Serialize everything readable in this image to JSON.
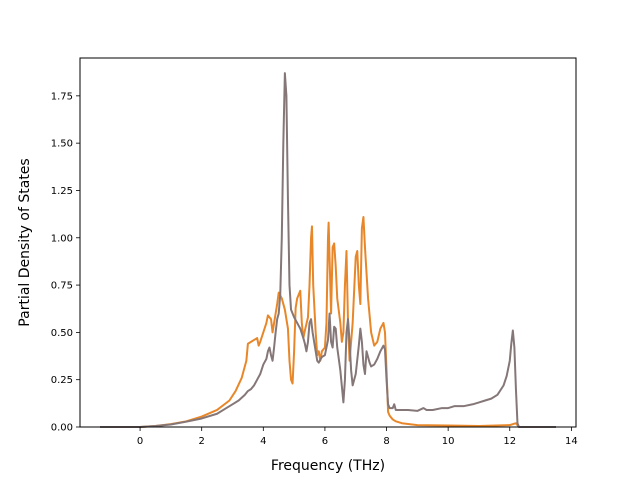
{
  "chart_data": {
    "type": "line",
    "title": "",
    "xlabel": "Frequency (THz)",
    "ylabel": "Partial Density of States",
    "xlim": [
      -1.95,
      14.15
    ],
    "ylim": [
      0,
      1.95
    ],
    "xticks": [
      0,
      2,
      4,
      6,
      8,
      10,
      12,
      14
    ],
    "xtick_labels": [
      "0",
      "2",
      "4",
      "6",
      "8",
      "10",
      "12",
      "14"
    ],
    "yticks": [
      0,
      0.25,
      0.5,
      0.75,
      1.0,
      1.25,
      1.5,
      1.75
    ],
    "ytick_labels": [
      "0.00",
      "0.25",
      "0.50",
      "0.75",
      "1.00",
      "1.25",
      "1.50",
      "1.75"
    ],
    "grid": false,
    "legend": "none",
    "series": [
      {
        "color": "#e8872a",
        "points": [
          [
            -1.3,
            0
          ],
          [
            0,
            0
          ],
          [
            0.5,
            0.005
          ],
          [
            1.0,
            0.015
          ],
          [
            1.5,
            0.03
          ],
          [
            2.0,
            0.055
          ],
          [
            2.5,
            0.09
          ],
          [
            2.9,
            0.14
          ],
          [
            3.1,
            0.19
          ],
          [
            3.3,
            0.26
          ],
          [
            3.45,
            0.35
          ],
          [
            3.5,
            0.44
          ],
          [
            3.6,
            0.45
          ],
          [
            3.7,
            0.46
          ],
          [
            3.8,
            0.47
          ],
          [
            3.85,
            0.43
          ],
          [
            3.9,
            0.45
          ],
          [
            4.0,
            0.5
          ],
          [
            4.1,
            0.55
          ],
          [
            4.15,
            0.59
          ],
          [
            4.25,
            0.57
          ],
          [
            4.3,
            0.5
          ],
          [
            4.35,
            0.55
          ],
          [
            4.45,
            0.65
          ],
          [
            4.5,
            0.71
          ],
          [
            4.6,
            0.68
          ],
          [
            4.7,
            0.62
          ],
          [
            4.8,
            0.52
          ],
          [
            4.85,
            0.35
          ],
          [
            4.9,
            0.25
          ],
          [
            4.95,
            0.23
          ],
          [
            5.0,
            0.4
          ],
          [
            5.05,
            0.63
          ],
          [
            5.1,
            0.68
          ],
          [
            5.2,
            0.72
          ],
          [
            5.25,
            0.55
          ],
          [
            5.3,
            0.47
          ],
          [
            5.35,
            0.51
          ],
          [
            5.45,
            0.58
          ],
          [
            5.5,
            0.75
          ],
          [
            5.55,
            1.0
          ],
          [
            5.58,
            1.06
          ],
          [
            5.62,
            0.75
          ],
          [
            5.7,
            0.5
          ],
          [
            5.75,
            0.38
          ],
          [
            5.8,
            0.4
          ],
          [
            5.85,
            0.35
          ],
          [
            5.9,
            0.4
          ],
          [
            6.0,
            0.42
          ],
          [
            6.05,
            0.55
          ],
          [
            6.1,
            1.0
          ],
          [
            6.12,
            1.08
          ],
          [
            6.15,
            0.9
          ],
          [
            6.2,
            0.6
          ],
          [
            6.25,
            0.95
          ],
          [
            6.3,
            0.97
          ],
          [
            6.35,
            0.85
          ],
          [
            6.4,
            0.68
          ],
          [
            6.5,
            0.55
          ],
          [
            6.55,
            0.45
          ],
          [
            6.6,
            0.5
          ],
          [
            6.65,
            0.75
          ],
          [
            6.7,
            0.93
          ],
          [
            6.75,
            0.55
          ],
          [
            6.8,
            0.35
          ],
          [
            6.85,
            0.45
          ],
          [
            6.9,
            0.55
          ],
          [
            7.0,
            0.9
          ],
          [
            7.05,
            0.93
          ],
          [
            7.1,
            0.75
          ],
          [
            7.15,
            0.65
          ],
          [
            7.2,
            1.05
          ],
          [
            7.25,
            1.11
          ],
          [
            7.3,
            0.95
          ],
          [
            7.4,
            0.68
          ],
          [
            7.5,
            0.5
          ],
          [
            7.6,
            0.43
          ],
          [
            7.7,
            0.45
          ],
          [
            7.8,
            0.52
          ],
          [
            7.9,
            0.55
          ],
          [
            7.95,
            0.5
          ],
          [
            8.0,
            0.3
          ],
          [
            8.05,
            0.08
          ],
          [
            8.1,
            0.06
          ],
          [
            8.2,
            0.04
          ],
          [
            8.3,
            0.03
          ],
          [
            8.5,
            0.02
          ],
          [
            9.0,
            0.01
          ],
          [
            10.0,
            0.008
          ],
          [
            11.0,
            0.005
          ],
          [
            12.0,
            0.01
          ],
          [
            12.2,
            0.02
          ],
          [
            12.3,
            0
          ],
          [
            13.5,
            0
          ]
        ]
      },
      {
        "color": "#857778",
        "points": [
          [
            -1.3,
            0
          ],
          [
            0,
            0
          ],
          [
            0.5,
            0.005
          ],
          [
            1.0,
            0.013
          ],
          [
            1.5,
            0.028
          ],
          [
            2.0,
            0.045
          ],
          [
            2.5,
            0.07
          ],
          [
            2.8,
            0.1
          ],
          [
            3.0,
            0.12
          ],
          [
            3.2,
            0.14
          ],
          [
            3.4,
            0.17
          ],
          [
            3.5,
            0.19
          ],
          [
            3.6,
            0.2
          ],
          [
            3.7,
            0.22
          ],
          [
            3.8,
            0.25
          ],
          [
            3.9,
            0.28
          ],
          [
            4.0,
            0.33
          ],
          [
            4.1,
            0.36
          ],
          [
            4.15,
            0.4
          ],
          [
            4.2,
            0.42
          ],
          [
            4.25,
            0.38
          ],
          [
            4.3,
            0.35
          ],
          [
            4.35,
            0.42
          ],
          [
            4.4,
            0.5
          ],
          [
            4.45,
            0.57
          ],
          [
            4.5,
            0.6
          ],
          [
            4.55,
            0.7
          ],
          [
            4.6,
            1.0
          ],
          [
            4.65,
            1.5
          ],
          [
            4.7,
            1.87
          ],
          [
            4.75,
            1.75
          ],
          [
            4.8,
            1.2
          ],
          [
            4.85,
            0.75
          ],
          [
            4.9,
            0.62
          ],
          [
            5.0,
            0.58
          ],
          [
            5.1,
            0.55
          ],
          [
            5.2,
            0.52
          ],
          [
            5.3,
            0.47
          ],
          [
            5.35,
            0.44
          ],
          [
            5.4,
            0.4
          ],
          [
            5.45,
            0.45
          ],
          [
            5.5,
            0.55
          ],
          [
            5.55,
            0.57
          ],
          [
            5.6,
            0.5
          ],
          [
            5.7,
            0.4
          ],
          [
            5.75,
            0.35
          ],
          [
            5.8,
            0.34
          ],
          [
            5.9,
            0.37
          ],
          [
            6.0,
            0.38
          ],
          [
            6.1,
            0.46
          ],
          [
            6.15,
            0.6
          ],
          [
            6.2,
            0.45
          ],
          [
            6.25,
            0.42
          ],
          [
            6.3,
            0.53
          ],
          [
            6.35,
            0.52
          ],
          [
            6.4,
            0.42
          ],
          [
            6.5,
            0.3
          ],
          [
            6.6,
            0.13
          ],
          [
            6.65,
            0.25
          ],
          [
            6.7,
            0.5
          ],
          [
            6.75,
            0.57
          ],
          [
            6.8,
            0.45
          ],
          [
            6.85,
            0.3
          ],
          [
            6.9,
            0.22
          ],
          [
            7.0,
            0.28
          ],
          [
            7.1,
            0.43
          ],
          [
            7.15,
            0.52
          ],
          [
            7.2,
            0.45
          ],
          [
            7.25,
            0.33
          ],
          [
            7.3,
            0.28
          ],
          [
            7.35,
            0.4
          ],
          [
            7.45,
            0.34
          ],
          [
            7.5,
            0.32
          ],
          [
            7.6,
            0.33
          ],
          [
            7.7,
            0.36
          ],
          [
            7.8,
            0.4
          ],
          [
            7.9,
            0.43
          ],
          [
            7.95,
            0.41
          ],
          [
            8.0,
            0.25
          ],
          [
            8.05,
            0.12
          ],
          [
            8.1,
            0.1
          ],
          [
            8.2,
            0.1
          ],
          [
            8.25,
            0.12
          ],
          [
            8.3,
            0.09
          ],
          [
            8.5,
            0.09
          ],
          [
            8.7,
            0.09
          ],
          [
            9.0,
            0.085
          ],
          [
            9.2,
            0.1
          ],
          [
            9.3,
            0.09
          ],
          [
            9.5,
            0.09
          ],
          [
            9.8,
            0.1
          ],
          [
            10.0,
            0.1
          ],
          [
            10.2,
            0.11
          ],
          [
            10.5,
            0.11
          ],
          [
            10.8,
            0.12
          ],
          [
            11.0,
            0.13
          ],
          [
            11.2,
            0.14
          ],
          [
            11.4,
            0.15
          ],
          [
            11.6,
            0.17
          ],
          [
            11.8,
            0.22
          ],
          [
            11.9,
            0.27
          ],
          [
            12.0,
            0.35
          ],
          [
            12.05,
            0.44
          ],
          [
            12.1,
            0.51
          ],
          [
            12.15,
            0.42
          ],
          [
            12.2,
            0.2
          ],
          [
            12.25,
            0.02
          ],
          [
            12.3,
            0
          ],
          [
            13.5,
            0
          ]
        ]
      }
    ]
  }
}
